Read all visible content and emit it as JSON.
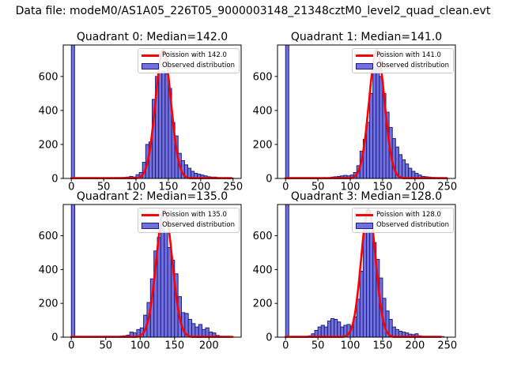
{
  "figure": {
    "suptitle": "Data file: modeM0/AS1A05_226T05_9000003148_21348cztM0_level2_quad_clean.evt",
    "background": "#ffffff"
  },
  "colors": {
    "bar_fill": "#7171e2",
    "bar_edge": "#1e1e78",
    "curve": "#ff0000",
    "axis": "#000000",
    "legend_border": "#cccccc"
  },
  "chart_data": [
    {
      "type": "bar",
      "role": "histogram-with-poisson-fit",
      "title": "Quadrant 0: Median=142.0",
      "median": 142.0,
      "legend": {
        "line_label": "Poission with 142.0",
        "patch_label": "Observed distribution"
      },
      "bin_width": 5,
      "bin_start": 0,
      "counts": [
        2000,
        0,
        0,
        0,
        0,
        0,
        0,
        0,
        0,
        0,
        0,
        0,
        0,
        0,
        4,
        5,
        6,
        8,
        12,
        8,
        22,
        35,
        95,
        200,
        215,
        465,
        600,
        620,
        630,
        615,
        530,
        330,
        250,
        148,
        105,
        80,
        60,
        42,
        30,
        25,
        20,
        15,
        10,
        8,
        8,
        5,
        4,
        3,
        4,
        3
      ],
      "curve": {
        "lambda": 142.0,
        "peak": 755,
        "x_max": 248
      },
      "xticks": [
        0,
        50,
        100,
        150,
        200,
        250
      ],
      "yticks": [
        0,
        200,
        400,
        600
      ],
      "xlim": [
        -12.5,
        262.5
      ],
      "ylim": [
        0,
        785
      ],
      "grid": false,
      "legend_position": "upper right"
    },
    {
      "type": "bar",
      "role": "histogram-with-poisson-fit",
      "title": "Quadrant 1: Median=141.0",
      "median": 141.0,
      "legend": {
        "line_label": "Poission with 141.0",
        "patch_label": "Observed distribution"
      },
      "bin_width": 5,
      "bin_start": 0,
      "counts": [
        2000,
        0,
        0,
        0,
        0,
        0,
        0,
        0,
        0,
        0,
        0,
        0,
        0,
        0,
        8,
        10,
        12,
        15,
        18,
        15,
        20,
        35,
        75,
        160,
        230,
        330,
        500,
        640,
        650,
        600,
        500,
        390,
        300,
        235,
        185,
        140,
        110,
        85,
        60,
        42,
        30,
        20,
        12,
        10,
        8,
        6,
        5,
        4,
        3,
        3
      ],
      "curve": {
        "lambda": 141.0,
        "peak": 758,
        "x_max": 250
      },
      "xticks": [
        0,
        50,
        100,
        150,
        200,
        250
      ],
      "yticks": [
        0,
        200,
        400,
        600
      ],
      "xlim": [
        -12.5,
        262.5
      ],
      "ylim": [
        0,
        785
      ],
      "grid": false,
      "legend_position": "upper right"
    },
    {
      "type": "bar",
      "role": "histogram-with-poisson-fit",
      "title": "Quadrant 2: Median=135.0",
      "median": 135.0,
      "legend": {
        "line_label": "Poission with 135.0",
        "patch_label": "Observed distribution"
      },
      "bin_width": 5,
      "bin_start": 0,
      "counts": [
        2000,
        0,
        0,
        0,
        0,
        0,
        0,
        0,
        0,
        0,
        0,
        0,
        0,
        0,
        6,
        8,
        12,
        30,
        25,
        45,
        55,
        130,
        205,
        345,
        510,
        590,
        660,
        620,
        530,
        455,
        375,
        240,
        145,
        140,
        105,
        80,
        60,
        75,
        45,
        55,
        30,
        25,
        10,
        5,
        4,
        3,
        3
      ],
      "curve": {
        "lambda": 135.0,
        "peak": 753,
        "x_max": 235
      },
      "xticks": [
        0,
        50,
        100,
        150,
        200
      ],
      "yticks": [
        0,
        200,
        400,
        600
      ],
      "xlim": [
        -11.75,
        246.75
      ],
      "ylim": [
        0,
        785
      ],
      "grid": false,
      "legend_position": "upper right"
    },
    {
      "type": "bar",
      "role": "histogram-with-poisson-fit",
      "title": "Quadrant 3: Median=128.0",
      "median": 128.0,
      "legend": {
        "line_label": "Poission with 128.0",
        "patch_label": "Observed distribution"
      },
      "bin_width": 5,
      "bin_start": 0,
      "counts": [
        2000,
        0,
        0,
        0,
        0,
        0,
        0,
        8,
        20,
        40,
        60,
        70,
        60,
        95,
        110,
        105,
        90,
        60,
        70,
        75,
        65,
        120,
        225,
        390,
        640,
        655,
        620,
        560,
        460,
        350,
        230,
        155,
        105,
        60,
        45,
        35,
        30,
        25,
        18,
        15,
        20,
        8,
        5,
        4,
        3,
        3,
        3,
        3,
        3
      ],
      "curve": {
        "lambda": 128.0,
        "peak": 760,
        "x_max": 240
      },
      "xticks": [
        0,
        50,
        100,
        150,
        200,
        250
      ],
      "yticks": [
        0,
        200,
        400,
        600
      ],
      "xlim": [
        -12.5,
        262.5
      ],
      "ylim": [
        0,
        785
      ],
      "grid": false,
      "legend_position": "upper right"
    }
  ]
}
